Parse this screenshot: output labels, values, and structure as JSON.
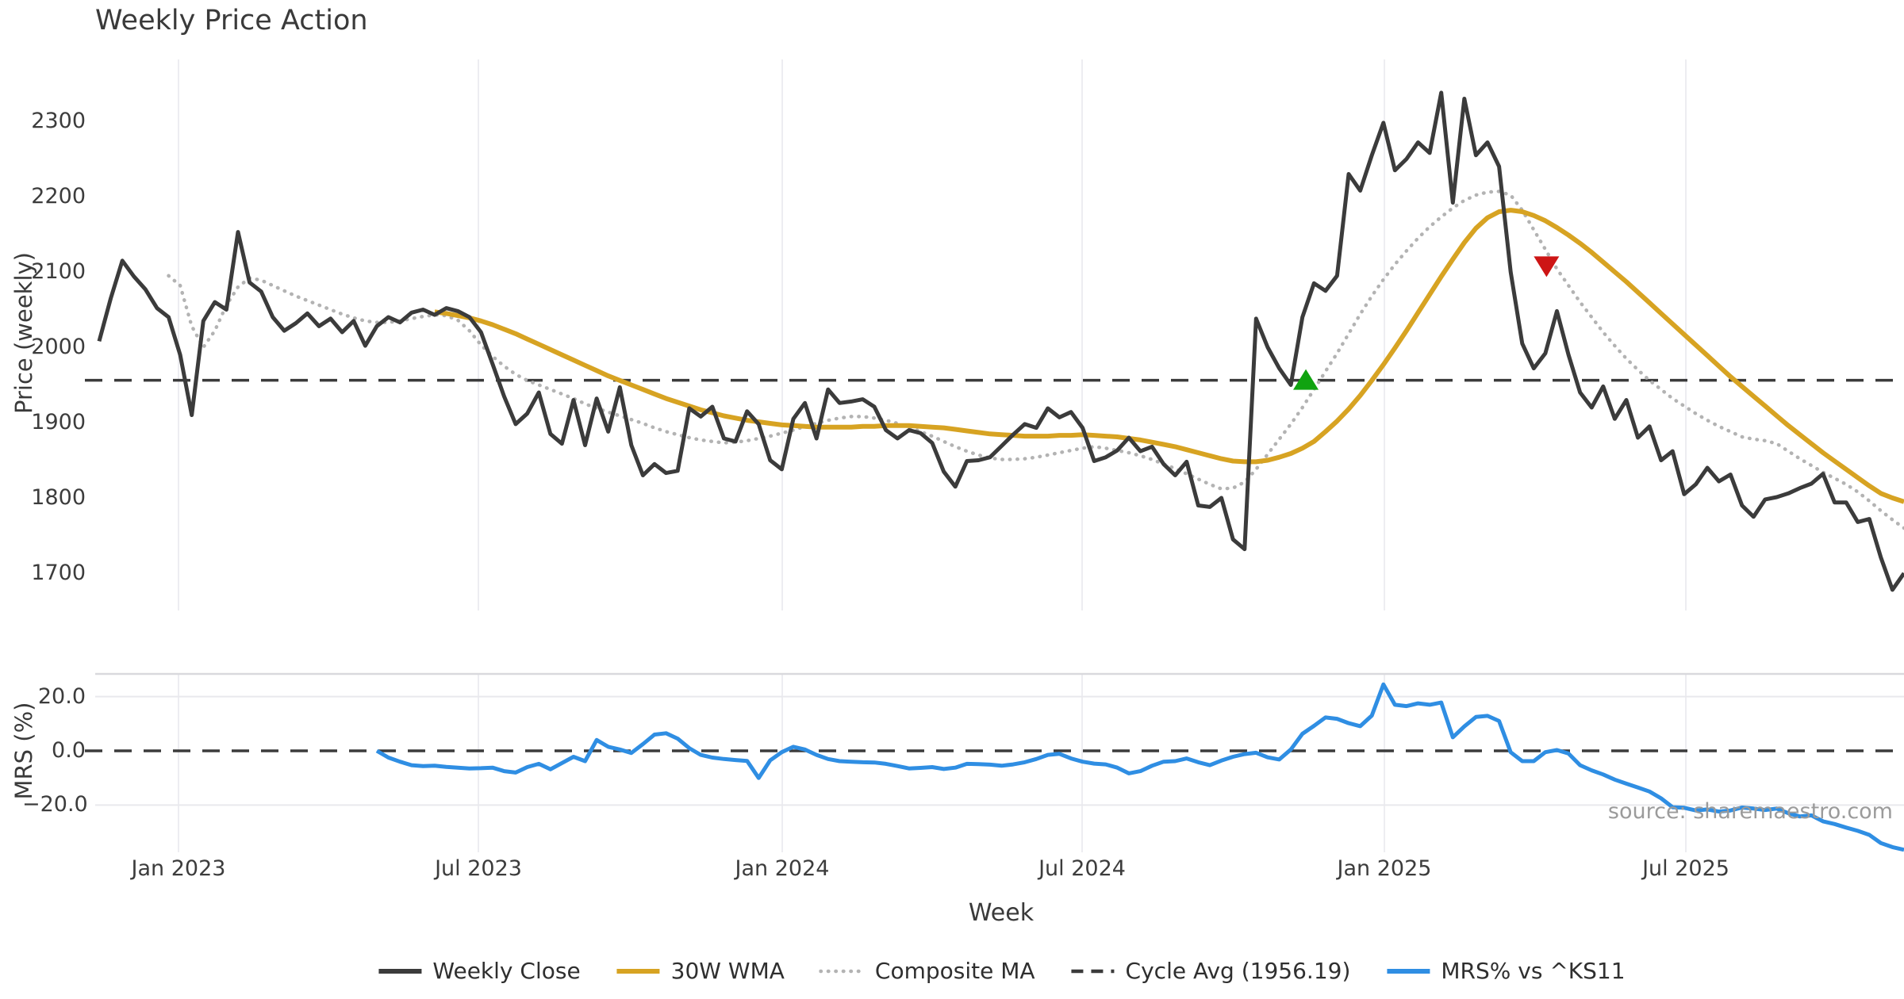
{
  "title": "Weekly Price Action",
  "axes": {
    "price_ylabel": "Price (weekly)",
    "mrs_ylabel": "MRS (%)",
    "xlabel": "Week"
  },
  "source": "source: sharemaestro.com",
  "colors": {
    "close": "#3b3b3b",
    "wma": "#d7a322",
    "composite": "#b3b3b3",
    "cycle_avg": "#3b3b3b",
    "mrs": "#2f8ee3",
    "marker_up": "#10a310",
    "marker_down": "#cd1515",
    "grid": "#ededf1",
    "panel_border": "#d9d9dd",
    "text": "#3a3a3a",
    "muted_text": "#9b9b9b"
  },
  "legend": [
    {
      "label": "Weekly Close",
      "swatch": "solid",
      "color_key": "close"
    },
    {
      "label": "30W WMA",
      "swatch": "solid",
      "color_key": "wma"
    },
    {
      "label": "Composite MA",
      "swatch": "dotted",
      "color_key": "composite"
    },
    {
      "label": "Cycle Avg (1956.19)",
      "swatch": "dashed",
      "color_key": "cycle_avg"
    },
    {
      "label": "MRS% vs ^KS11",
      "swatch": "solid",
      "color_key": "mrs"
    }
  ],
  "chart_data": [
    {
      "type": "line",
      "panel": "price",
      "title": "Weekly Price Action",
      "ylabel": "Price (weekly)",
      "ylim": [
        1650,
        2382
      ],
      "yticks": [
        2300,
        2200,
        2100,
        2000,
        1900,
        1800,
        1700
      ],
      "x_unit": "week_index",
      "x_ticks": [
        {
          "week": 6.86,
          "label": "Jan 2023"
        },
        {
          "week": 32.78,
          "label": "Jul 2023"
        },
        {
          "week": 59.04,
          "label": "Jan 2024"
        },
        {
          "week": 84.96,
          "label": "Jul 2024"
        },
        {
          "week": 111.09,
          "label": "Jan 2025"
        },
        {
          "week": 137.14,
          "label": "Jul 2025"
        }
      ],
      "series": [
        {
          "name": "Weekly Close",
          "color_key": "close",
          "start_week": 0,
          "values": [
            2008,
            2065,
            2115,
            2094,
            2077,
            2052,
            2040,
            1990,
            1910,
            2035,
            2060,
            2050,
            2153,
            2086,
            2074,
            2040,
            2022,
            2032,
            2045,
            2028,
            2038,
            2020,
            2035,
            2002,
            2028,
            2040,
            2033,
            2046,
            2050,
            2043,
            2052,
            2048,
            2040,
            2020,
            1978,
            1935,
            1898,
            1912,
            1940,
            1885,
            1872,
            1930,
            1870,
            1932,
            1888,
            1947,
            1870,
            1830,
            1845,
            1833,
            1836,
            1919,
            1908,
            1921,
            1879,
            1875,
            1915,
            1898,
            1850,
            1838,
            1905,
            1926,
            1879,
            1944,
            1926,
            1928,
            1931,
            1921,
            1890,
            1879,
            1890,
            1886,
            1873,
            1835,
            1815,
            1849,
            1850,
            1854,
            1869,
            1884,
            1898,
            1893,
            1919,
            1907,
            1914,
            1893,
            1849,
            1854,
            1863,
            1880,
            1862,
            1868,
            1845,
            1830,
            1848,
            1790,
            1788,
            1800,
            1745,
            1732,
            2038,
            2000,
            1972,
            1950,
            2040,
            2085,
            2075,
            2095,
            2230,
            2208,
            2255,
            2298,
            2235,
            2250,
            2272,
            2258,
            2338,
            2192,
            2330,
            2255,
            2272,
            2240,
            2100,
            2005,
            1972,
            1992,
            2048,
            1990,
            1940,
            1920,
            1948,
            1905,
            1930,
            1880,
            1895,
            1850,
            1862,
            1805,
            1818,
            1840,
            1822,
            1831,
            1790,
            1775,
            1798,
            1801,
            1806,
            1813,
            1819,
            1832,
            1794,
            1794,
            1768,
            1772,
            1721,
            1678,
            1700
          ]
        },
        {
          "name": "30W WMA",
          "color_key": "wma",
          "start_week": 29,
          "values": [
            2047,
            2045,
            2042,
            2039,
            2035,
            2030,
            2024,
            2018,
            2011,
            2004,
            1997,
            1990,
            1983,
            1976,
            1969,
            1962,
            1956,
            1950,
            1944,
            1938,
            1932,
            1927,
            1922,
            1917,
            1913,
            1909,
            1906,
            1903,
            1901,
            1899,
            1897,
            1896,
            1895,
            1894,
            1894,
            1894,
            1894,
            1895,
            1895,
            1896,
            1896,
            1896,
            1895,
            1894,
            1893,
            1891,
            1889,
            1887,
            1885,
            1884,
            1883,
            1882,
            1882,
            1882,
            1883,
            1883,
            1884,
            1883,
            1882,
            1881,
            1879,
            1877,
            1874,
            1871,
            1868,
            1864,
            1860,
            1856,
            1852,
            1849,
            1848,
            1848,
            1850,
            1854,
            1859,
            1866,
            1875,
            1888,
            1902,
            1918,
            1936,
            1956,
            1977,
            1999,
            2022,
            2046,
            2070,
            2094,
            2117,
            2139,
            2158,
            2172,
            2180,
            2182,
            2180,
            2175,
            2168,
            2159,
            2149,
            2138,
            2126,
            2113,
            2100,
            2087,
            2073,
            2059,
            2045,
            2031,
            2017,
            2003,
            1989,
            1975,
            1961,
            1948,
            1935,
            1922,
            1909,
            1896,
            1884,
            1872,
            1860,
            1849,
            1838,
            1827,
            1816,
            1806,
            1800,
            1795
          ]
        },
        {
          "name": "Composite MA",
          "color_key": "composite",
          "start_week": 6,
          "values": [
            2095,
            2082,
            2028,
            2000,
            2022,
            2056,
            2080,
            2092,
            2089,
            2082,
            2075,
            2068,
            2062,
            2056,
            2050,
            2044,
            2039,
            2035,
            2033,
            2033,
            2035,
            2038,
            2041,
            2043,
            2042,
            2036,
            2022,
            2003,
            1988,
            1975,
            1964,
            1956,
            1950,
            1944,
            1938,
            1932,
            1925,
            1919,
            1914,
            1909,
            1904,
            1899,
            1893,
            1888,
            1884,
            1880,
            1877,
            1875,
            1873,
            1874,
            1876,
            1879,
            1882,
            1886,
            1890,
            1895,
            1899,
            1903,
            1906,
            1908,
            1908,
            1906,
            1903,
            1899,
            1894,
            1888,
            1882,
            1875,
            1868,
            1862,
            1857,
            1853,
            1851,
            1851,
            1852,
            1854,
            1857,
            1860,
            1863,
            1866,
            1868,
            1866,
            1863,
            1860,
            1856,
            1851,
            1845,
            1839,
            1832,
            1825,
            1818,
            1812,
            1813,
            1821,
            1838,
            1858,
            1878,
            1898,
            1920,
            1944,
            1968,
            1992,
            2018,
            2044,
            2068,
            2090,
            2110,
            2128,
            2145,
            2160,
            2173,
            2185,
            2195,
            2202,
            2206,
            2207,
            2202,
            2182,
            2156,
            2130,
            2104,
            2082,
            2060,
            2040,
            2020,
            2002,
            1985,
            1970,
            1956,
            1944,
            1932,
            1922,
            1912,
            1903,
            1895,
            1888,
            1881,
            1878,
            1876,
            1872,
            1862,
            1852,
            1843,
            1834,
            1826,
            1818,
            1808,
            1796,
            1783,
            1771,
            1760
          ]
        },
        {
          "name": "Cycle Avg",
          "color_key": "cycle_avg",
          "kind": "hline",
          "value": 1956.19
        }
      ],
      "markers": [
        {
          "shape": "triangle-up",
          "week": 104.3,
          "value": 1956.19,
          "color_key": "marker_up"
        },
        {
          "shape": "triangle-down",
          "week": 125.1,
          "value": 2108,
          "color_key": "marker_down"
        }
      ]
    },
    {
      "type": "line",
      "panel": "mrs",
      "ylabel": "MRS (%)",
      "ylim": [
        -37.5,
        28.5
      ],
      "yticks": [
        {
          "v": 20,
          "label": "20.0"
        },
        {
          "v": 0,
          "label": "0.0"
        },
        {
          "v": -20,
          "label": "−20.0"
        }
      ],
      "zero_dashed_line": true,
      "series": [
        {
          "name": "MRS% vs ^KS11",
          "color_key": "mrs",
          "start_week": 24,
          "values": [
            0.0,
            -2.5,
            -4.0,
            -5.3,
            -5.6,
            -5.5,
            -5.9,
            -6.2,
            -6.5,
            -6.4,
            -6.2,
            -7.5,
            -8.0,
            -6.0,
            -4.8,
            -6.8,
            -4.5,
            -2.2,
            -3.8,
            4.0,
            1.5,
            0.5,
            -0.8,
            2.5,
            6.0,
            6.5,
            4.5,
            1.0,
            -1.5,
            -2.5,
            -3.0,
            -3.4,
            -3.7,
            -10.0,
            -3.5,
            -0.5,
            1.5,
            0.5,
            -1.5,
            -3.0,
            -3.8,
            -4.0,
            -4.2,
            -4.3,
            -4.8,
            -5.6,
            -6.5,
            -6.3,
            -6.0,
            -6.7,
            -6.2,
            -4.8,
            -4.9,
            -5.1,
            -5.5,
            -5.0,
            -4.2,
            -3.0,
            -1.5,
            -1.1,
            -2.8,
            -4.0,
            -4.7,
            -5.0,
            -6.2,
            -8.3,
            -7.5,
            -5.5,
            -4.0,
            -3.8,
            -2.8,
            -4.2,
            -5.3,
            -3.6,
            -2.2,
            -1.2,
            -0.7,
            -2.4,
            -3.2,
            0.5,
            6.3,
            9.2,
            12.3,
            11.8,
            10.2,
            9.1,
            13.0,
            24.5,
            17.0,
            16.5,
            17.5,
            17.0,
            17.8,
            5.0,
            9.0,
            12.5,
            12.9,
            11.0,
            -0.5,
            -3.8,
            -3.8,
            -0.5,
            0.3,
            -1.0,
            -5.3,
            -7.2,
            -8.7,
            -10.6,
            -12.1,
            -13.5,
            -15.0,
            -17.5,
            -20.8,
            -21.0,
            -22.0,
            -21.6,
            -22.4,
            -22.0,
            -20.9,
            -21.3,
            -21.8,
            -21.3,
            -23.0,
            -24.2,
            -23.8,
            -26.0,
            -27.0,
            -28.3,
            -29.5,
            -31.0,
            -34.0,
            -35.5,
            -36.5
          ]
        }
      ]
    }
  ]
}
